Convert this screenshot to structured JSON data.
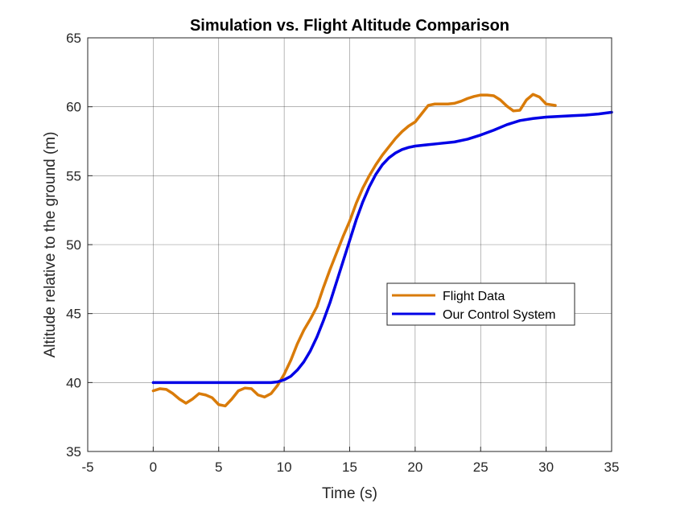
{
  "chart_data": {
    "type": "line",
    "title": "Simulation vs. Flight Altitude Comparison",
    "xlabel": "Time (s)",
    "ylabel": "Altitude relative to the ground (m)",
    "xlim": [
      -5,
      35
    ],
    "ylim": [
      35,
      65
    ],
    "xticks": [
      -5,
      0,
      5,
      10,
      15,
      20,
      25,
      30,
      35
    ],
    "yticks": [
      35,
      40,
      45,
      50,
      55,
      60,
      65
    ],
    "grid": true,
    "legend_position": "center-right",
    "series": [
      {
        "name": "Flight Data",
        "color": "#D97B09",
        "x": [
          0,
          0.5,
          1,
          1.5,
          2,
          2.5,
          3,
          3.5,
          4,
          4.5,
          5,
          5.5,
          6,
          6.5,
          7,
          7.5,
          8,
          8.5,
          9,
          9.5,
          10,
          10.5,
          11,
          11.5,
          12,
          12.5,
          13,
          13.5,
          14,
          14.5,
          15,
          15.5,
          16,
          16.5,
          17,
          17.5,
          18,
          18.5,
          19,
          19.5,
          20,
          20.5,
          21,
          21.5,
          22,
          22.5,
          23,
          23.5,
          24,
          24.5,
          25,
          25.5,
          26,
          26.5,
          27,
          27.5,
          28,
          28.5,
          29,
          29.5,
          30,
          30.7
        ],
        "values": [
          39.4,
          39.55,
          39.5,
          39.2,
          38.8,
          38.5,
          38.8,
          39.2,
          39.1,
          38.9,
          38.4,
          38.3,
          38.8,
          39.4,
          39.6,
          39.55,
          39.1,
          38.95,
          39.2,
          39.8,
          40.6,
          41.6,
          42.8,
          43.8,
          44.6,
          45.5,
          46.9,
          48.2,
          49.4,
          50.6,
          51.7,
          53.0,
          54.1,
          55.0,
          55.8,
          56.5,
          57.1,
          57.7,
          58.2,
          58.6,
          58.9,
          59.5,
          60.1,
          60.2,
          60.2,
          60.2,
          60.25,
          60.4,
          60.6,
          60.75,
          60.85,
          60.85,
          60.8,
          60.5,
          60.05,
          59.7,
          59.75,
          60.5,
          60.9,
          60.7,
          60.2,
          60.1
        ]
      },
      {
        "name": "Our Control System",
        "color": "#0000E6",
        "x": [
          0,
          1,
          2,
          3,
          4,
          5,
          6,
          7,
          8,
          9,
          9.5,
          10,
          10.5,
          11,
          11.5,
          12,
          12.5,
          13,
          13.5,
          14,
          14.5,
          15,
          15.5,
          16,
          16.5,
          17,
          17.5,
          18,
          18.5,
          19,
          19.5,
          20,
          20.5,
          21,
          21.5,
          22,
          23,
          24,
          25,
          26,
          27,
          28,
          29,
          30,
          31,
          32,
          33,
          34,
          35
        ],
        "values": [
          40.0,
          40.0,
          40.0,
          40.0,
          40.0,
          40.0,
          40.0,
          40.0,
          40.0,
          40.0,
          40.05,
          40.2,
          40.45,
          40.9,
          41.5,
          42.3,
          43.3,
          44.5,
          45.8,
          47.3,
          48.8,
          50.3,
          51.8,
          53.1,
          54.2,
          55.1,
          55.8,
          56.3,
          56.65,
          56.9,
          57.05,
          57.15,
          57.2,
          57.25,
          57.3,
          57.35,
          57.45,
          57.65,
          57.95,
          58.3,
          58.7,
          59.0,
          59.15,
          59.25,
          59.3,
          59.35,
          59.4,
          59.48,
          59.6
        ]
      }
    ]
  }
}
